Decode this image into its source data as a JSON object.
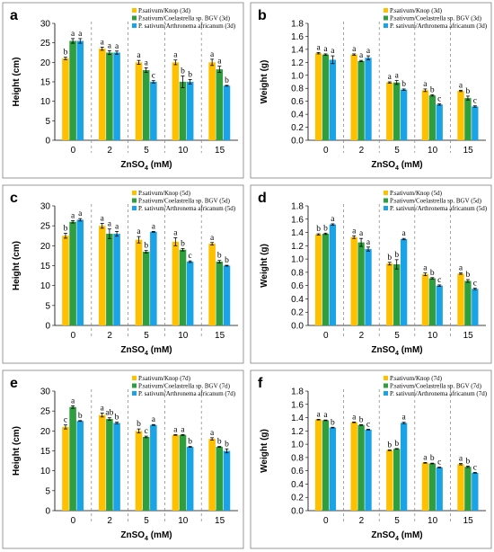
{
  "chart_data": [
    {
      "panel": "a",
      "type": "bar",
      "ylabel": "Height (cm)",
      "xlabel_main": "ZnSO",
      "xlabel_sub": "4",
      "xlabel_tail": " (mM)",
      "categories": [
        "0",
        "2",
        "5",
        "10",
        "15"
      ],
      "ylim": [
        0,
        30
      ],
      "yticks": [
        0,
        5,
        10,
        15,
        20,
        25,
        30
      ],
      "colors": [
        "#ffc000",
        "#2e9e3e",
        "#1aa3e6"
      ],
      "series": [
        {
          "name": "P.sativum/Knop (3d)",
          "values": [
            21,
            23.5,
            20,
            20,
            20
          ],
          "errors": [
            0.3,
            0.4,
            0.5,
            0.6,
            0.8
          ]
        },
        {
          "name": "P.sativum/Coelastrella sp. BGV (3d)",
          "values": [
            25.5,
            22.5,
            18,
            15,
            18.2
          ],
          "errors": [
            0.6,
            0.5,
            0.6,
            1.5,
            0.8
          ]
        },
        {
          "name": "P. sativum/Arthronema africanum (3d)",
          "values": [
            25.5,
            22.5,
            15,
            15,
            14
          ],
          "errors": [
            0.6,
            0.4,
            0.3,
            0.6,
            0.1
          ]
        }
      ],
      "labels": [
        [
          "b",
          "a",
          "a"
        ],
        [
          "a",
          "a",
          "a"
        ],
        [
          "a",
          "a",
          "c"
        ],
        [
          "a",
          "b",
          "b"
        ],
        [
          "a",
          "a",
          "b"
        ]
      ]
    },
    {
      "panel": "b",
      "type": "bar",
      "ylabel": "Weight (g)",
      "xlabel_main": "ZnSO",
      "xlabel_sub": "4",
      "xlabel_tail": " (mM)",
      "categories": [
        "0",
        "2",
        "5",
        "10",
        "15"
      ],
      "ylim": [
        0,
        1.8
      ],
      "yticks": [
        0,
        0.2,
        0.4,
        0.6,
        0.8,
        1.0,
        1.2,
        1.4,
        1.6,
        1.8
      ],
      "colors": [
        "#ffc000",
        "#2e9e3e",
        "#1aa3e6"
      ],
      "series": [
        {
          "name": "P.sativum/Knop (3d)",
          "values": [
            1.34,
            1.32,
            0.89,
            0.77,
            0.76
          ],
          "errors": [
            0.01,
            0.01,
            0.01,
            0.02,
            0.01
          ]
        },
        {
          "name": "P.sativum/Coelastrella sp. BGV (3d)",
          "values": [
            1.32,
            1.22,
            0.89,
            0.69,
            0.65
          ],
          "errors": [
            0.01,
            0.01,
            0.03,
            0.01,
            0.03
          ]
        },
        {
          "name": "P. sativum/Arthronema africanum (3d)",
          "values": [
            1.24,
            1.27,
            0.78,
            0.55,
            0.52
          ],
          "errors": [
            0.06,
            0.03,
            0.01,
            0.01,
            0.01
          ]
        }
      ],
      "labels": [
        [
          "a",
          "a",
          "a"
        ],
        [
          "a",
          "a",
          "a"
        ],
        [
          "a",
          "a",
          "b"
        ],
        [
          "a",
          "b",
          "c"
        ],
        [
          "a",
          "b",
          "c"
        ]
      ]
    },
    {
      "panel": "c",
      "type": "bar",
      "ylabel": "Height (cm)",
      "xlabel_main": "ZnSO",
      "xlabel_sub": "4",
      "xlabel_tail": " (mM)",
      "categories": [
        "0",
        "2",
        "5",
        "10",
        "15"
      ],
      "ylim": [
        0,
        30
      ],
      "yticks": [
        0,
        5,
        10,
        15,
        20,
        25,
        30
      ],
      "colors": [
        "#ffc000",
        "#2e9e3e",
        "#1aa3e6"
      ],
      "series": [
        {
          "name": "P.sativum/Knop (5d)",
          "values": [
            22.5,
            25,
            21.5,
            21,
            20.5
          ],
          "errors": [
            0.6,
            0.6,
            0.8,
            1.0,
            0.3
          ]
        },
        {
          "name": "P.sativum/Coelastrella sp. BGV (5d)",
          "values": [
            26,
            23,
            18.5,
            19,
            16
          ],
          "errors": [
            0.3,
            1.2,
            0.3,
            0.3,
            0.3
          ]
        },
        {
          "name": "P. sativum/Arthronema africanum (5d)",
          "values": [
            26.5,
            23,
            23.5,
            16,
            15
          ],
          "errors": [
            0.3,
            0.6,
            0.1,
            0.2,
            0.1
          ]
        }
      ],
      "labels": [
        [
          "b",
          "a",
          "a"
        ],
        [
          "a",
          "a",
          "a"
        ],
        [
          "a",
          "b",
          "a"
        ],
        [
          "a",
          "b",
          "c"
        ],
        [
          "a",
          "b",
          "b"
        ]
      ]
    },
    {
      "panel": "d",
      "type": "bar",
      "ylabel": "Weight (g)",
      "xlabel_main": "ZnSO",
      "xlabel_sub": "4",
      "xlabel_tail": " (mM)",
      "categories": [
        "0",
        "2",
        "5",
        "10",
        "15"
      ],
      "ylim": [
        0,
        1.8
      ],
      "yticks": [
        0,
        0.2,
        0.4,
        0.6,
        0.8,
        1.0,
        1.2,
        1.4,
        1.6,
        1.8
      ],
      "colors": [
        "#ffc000",
        "#2e9e3e",
        "#1aa3e6"
      ],
      "series": [
        {
          "name": "P.sativum/Knop (5d)",
          "values": [
            1.37,
            1.33,
            0.93,
            0.77,
            0.78
          ],
          "errors": [
            0.01,
            0.02,
            0.02,
            0.02,
            0.01
          ]
        },
        {
          "name": "P.sativum/Coelastrella sp. BGV (5d)",
          "values": [
            1.38,
            1.25,
            0.92,
            0.71,
            0.67
          ],
          "errors": [
            0.01,
            0.06,
            0.07,
            0.01,
            0.02
          ]
        },
        {
          "name": "P. sativum/Arthronema africanum (5d)",
          "values": [
            1.52,
            1.15,
            1.3,
            0.6,
            0.55
          ],
          "errors": [
            0.01,
            0.03,
            0.01,
            0.01,
            0.01
          ]
        }
      ],
      "labels": [
        [
          "b",
          "b",
          "a"
        ],
        [
          "a",
          "a",
          "a"
        ],
        [
          "b",
          "b",
          "a"
        ],
        [
          "a",
          "b",
          "c"
        ],
        [
          "a",
          "b",
          "c"
        ]
      ]
    },
    {
      "panel": "e",
      "type": "bar",
      "ylabel": "Height (cm)",
      "xlabel_main": "ZnSO",
      "xlabel_sub": "4",
      "xlabel_tail": " (mM)",
      "categories": [
        "0",
        "2",
        "5",
        "10",
        "15"
      ],
      "ylim": [
        0,
        30
      ],
      "yticks": [
        0,
        5,
        10,
        15,
        20,
        25,
        30
      ],
      "colors": [
        "#ffc000",
        "#2e9e3e",
        "#1aa3e6"
      ],
      "series": [
        {
          "name": "P.sativum/Knop (7d)",
          "values": [
            21,
            24,
            20,
            19,
            18
          ],
          "errors": [
            0.5,
            0.5,
            0.5,
            0.1,
            0.3
          ]
        },
        {
          "name": "P.sativum/Coelastrella sp. BGV (7d)",
          "values": [
            26,
            23,
            18.5,
            19,
            16
          ],
          "errors": [
            0.3,
            0.3,
            0.2,
            0.1,
            0.1
          ]
        },
        {
          "name": "P. sativum/Arthronema africanum (7d)",
          "values": [
            22.5,
            22,
            21.5,
            16,
            15
          ],
          "errors": [
            0.1,
            0.2,
            0.1,
            0.1,
            0.5
          ]
        }
      ],
      "labels": [
        [
          "c",
          "a",
          "b"
        ],
        [
          "a",
          "ab",
          "b"
        ],
        [
          "b",
          "c",
          "a"
        ],
        [
          "a",
          "a",
          "b"
        ],
        [
          "a",
          "b",
          "b"
        ]
      ]
    },
    {
      "panel": "f",
      "type": "bar",
      "ylabel": "Weight (g)",
      "xlabel_main": "ZnSO",
      "xlabel_sub": "4",
      "xlabel_tail": " (mM)",
      "categories": [
        "0",
        "2",
        "5",
        "10",
        "15"
      ],
      "ylim": [
        0,
        1.8
      ],
      "yticks": [
        0,
        0.2,
        0.4,
        0.6,
        0.8,
        1.0,
        1.2,
        1.4,
        1.6,
        1.8
      ],
      "colors": [
        "#ffc000",
        "#2e9e3e",
        "#1aa3e6"
      ],
      "series": [
        {
          "name": "P.sativum/Knop (7d)",
          "values": [
            1.37,
            1.33,
            0.91,
            0.72,
            0.7
          ],
          "errors": [
            0.005,
            0.005,
            0.005,
            0.005,
            0.01
          ]
        },
        {
          "name": "P.sativum/Coelastrella sp. BGV (7d)",
          "values": [
            1.36,
            1.29,
            0.93,
            0.71,
            0.66
          ],
          "errors": [
            0.005,
            0.005,
            0.005,
            0.005,
            0.01
          ]
        },
        {
          "name": "P. sativum/Arthronema africanum (7d)",
          "values": [
            1.25,
            1.22,
            1.32,
            0.65,
            0.57
          ],
          "errors": [
            0.005,
            0.005,
            0.01,
            0.005,
            0.005
          ]
        }
      ],
      "labels": [
        [
          "a",
          "a",
          "b"
        ],
        [
          "a",
          "b",
          "c"
        ],
        [
          "b",
          "b",
          "a"
        ],
        [
          "a",
          "b",
          "c"
        ],
        [
          "a",
          "b",
          "c"
        ]
      ]
    }
  ]
}
